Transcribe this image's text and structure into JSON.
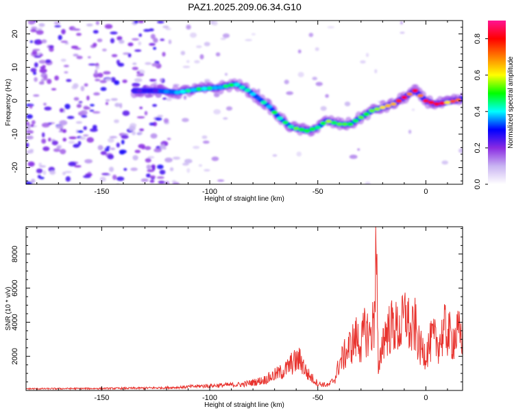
{
  "title": "PAZ1.2025.209.06.34.G10",
  "chart_data": [
    {
      "type": "heatmap",
      "xlabel": "Height of straight line (km)",
      "ylabel": "Frequency (Hz)",
      "xlim": [
        -185,
        17
      ],
      "ylim": [
        -25,
        24
      ],
      "xticks": [
        -150,
        -100,
        -50,
        0
      ],
      "yticks": [
        -20,
        -10,
        0,
        10,
        20
      ],
      "colorbar": {
        "label": "Normalized spectral amplitude",
        "range": [
          0.0,
          0.9
        ],
        "ticks": [
          0.0,
          0.2,
          0.4,
          0.6,
          0.8
        ],
        "colors": [
          "#ffffff",
          "#c9b4f2",
          "#8a2be2",
          "#0000ff",
          "#00ffff",
          "#00ff00",
          "#ffff00",
          "#ff7f00",
          "#ff0000",
          "#ff1493"
        ]
      },
      "ridge": {
        "name": "",
        "x": [
          -135,
          -125,
          -115,
          -105,
          -95,
          -88,
          -82,
          -78,
          -72,
          -68,
          -62,
          -55,
          -50,
          -46,
          -40,
          -35,
          -30,
          -25,
          -20,
          -15,
          -10,
          -5,
          0,
          5,
          10,
          17
        ],
        "y": [
          3,
          3,
          2.5,
          3.5,
          4,
          5,
          3,
          1,
          -2,
          -5,
          -8,
          -9,
          -8,
          -6,
          -7,
          -7,
          -5,
          -3,
          -2,
          -1,
          1,
          3,
          0,
          -1,
          -0.5,
          0.5
        ],
        "peak_amplitude": [
          0.25,
          0.3,
          0.4,
          0.45,
          0.45,
          0.5,
          0.45,
          0.4,
          0.45,
          0.5,
          0.5,
          0.55,
          0.45,
          0.55,
          0.6,
          0.6,
          0.55,
          0.6,
          0.7,
          0.8,
          0.8,
          0.85,
          0.85,
          0.8,
          0.75,
          0.7
        ]
      }
    },
    {
      "type": "line",
      "xlabel": "Height of straight line (km)",
      "ylabel": "SNR (10 * v/v)",
      "xlim": [
        -185,
        17
      ],
      "ylim": [
        0,
        9600
      ],
      "xticks": [
        -150,
        -100,
        -50,
        0
      ],
      "yticks": [
        2000,
        4000,
        6000,
        8000
      ],
      "color": "#e8332e",
      "series": [
        {
          "name": "",
          "x": [
            -185,
            -175,
            -165,
            -155,
            -145,
            -135,
            -125,
            -115,
            -105,
            -95,
            -85,
            -75,
            -70,
            -65,
            -62,
            -58,
            -55,
            -50,
            -45,
            -42,
            -40,
            -38,
            -35,
            -32,
            -30,
            -28,
            -26,
            -24,
            -23,
            -22,
            -20,
            -18,
            -15,
            -12,
            -9,
            -7,
            -5,
            -3,
            0,
            3,
            6,
            9,
            12,
            15,
            17
          ],
          "y": [
            100,
            100,
            110,
            110,
            120,
            130,
            150,
            180,
            250,
            300,
            350,
            600,
            900,
            1200,
            1600,
            1800,
            1000,
            400,
            300,
            700,
            1600,
            2000,
            2600,
            3100,
            2700,
            3600,
            3200,
            4000,
            9600,
            800,
            3000,
            3500,
            3800,
            3500,
            4600,
            3200,
            3800,
            2500,
            2200,
            3000,
            2800,
            3600,
            3000,
            3300,
            3200
          ]
        }
      ]
    }
  ]
}
